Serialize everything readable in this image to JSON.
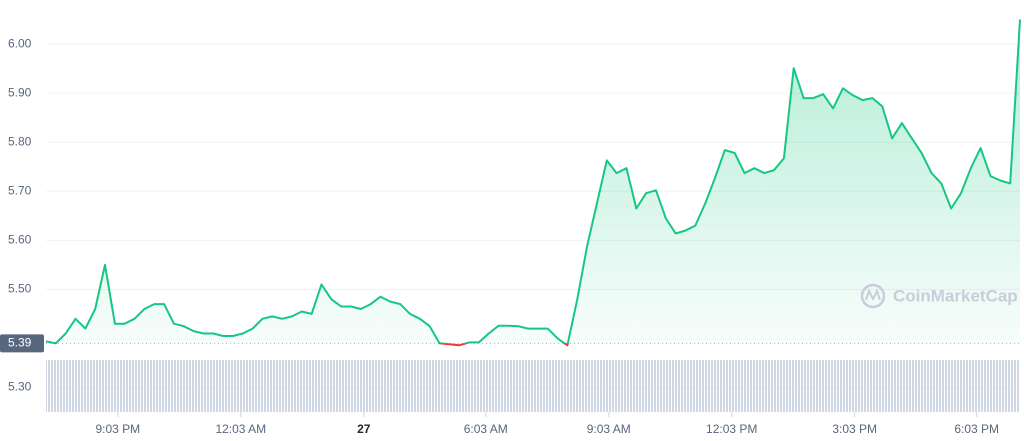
{
  "chart_data": {
    "type": "line",
    "series": [
      {
        "color": "#16c784",
        "below_color": "#ea3943",
        "values": [
          5.394,
          5.39,
          5.41,
          5.44,
          5.42,
          5.46,
          5.55,
          5.43,
          5.43,
          5.44,
          5.46,
          5.47,
          5.47,
          5.43,
          5.425,
          5.415,
          5.41,
          5.41,
          5.405,
          5.405,
          5.41,
          5.42,
          5.44,
          5.445,
          5.44,
          5.445,
          5.455,
          5.45,
          5.51,
          5.48,
          5.465,
          5.465,
          5.46,
          5.47,
          5.485,
          5.475,
          5.47,
          5.45,
          5.44,
          5.425,
          5.39,
          5.388,
          5.386,
          5.392,
          5.392,
          5.41,
          5.426,
          5.426,
          5.425,
          5.42,
          5.42,
          5.42,
          5.4,
          5.386,
          5.48,
          5.588,
          5.675,
          5.763,
          5.737,
          5.747,
          5.665,
          5.696,
          5.702,
          5.645,
          5.614,
          5.62,
          5.63,
          5.675,
          5.727,
          5.784,
          5.778,
          5.737,
          5.747,
          5.737,
          5.743,
          5.767,
          5.951,
          5.89,
          5.89,
          5.898,
          5.869,
          5.91,
          5.896,
          5.886,
          5.89,
          5.873,
          5.808,
          5.839,
          5.808,
          5.778,
          5.737,
          5.716,
          5.665,
          5.696,
          5.747,
          5.788,
          5.731,
          5.722,
          5.716,
          6.05
        ]
      }
    ],
    "reference": 5.39,
    "ylim": [
      5.25,
      6.09
    ],
    "yticks": [
      {
        "value": 5.3,
        "label": "5.30"
      },
      {
        "value": 5.5,
        "label": "5.50"
      },
      {
        "value": 5.6,
        "label": "5.60"
      },
      {
        "value": 5.7,
        "label": "5.70"
      },
      {
        "value": 5.8,
        "label": "5.80"
      },
      {
        "value": 5.9,
        "label": "5.90"
      },
      {
        "value": 6,
        "label": "6.00"
      }
    ],
    "xlim": [
      0,
      99
    ],
    "xticks": [
      {
        "value": 7.3,
        "label": "9:03 PM"
      },
      {
        "value": 19.8,
        "label": "12:03 AM"
      },
      {
        "value": 32.3,
        "label": "27"
      },
      {
        "value": 44.7,
        "label": "6:03 AM"
      },
      {
        "value": 57.2,
        "label": "9:03 AM"
      },
      {
        "value": 69.7,
        "label": "12:03 PM"
      },
      {
        "value": 82.2,
        "label": "3:03 PM"
      },
      {
        "value": 94.6,
        "label": "6:03 PM"
      }
    ],
    "grid": true,
    "watermark": "CoinMarketCap"
  }
}
